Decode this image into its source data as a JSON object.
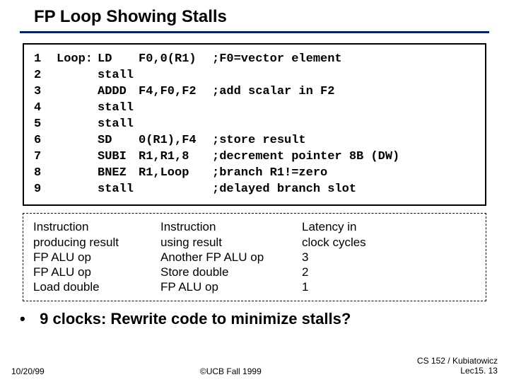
{
  "title": "FP Loop Showing Stalls",
  "code": [
    {
      "n": "1",
      "label": "Loop:",
      "op": "LD",
      "args": "F0,0(R1)",
      "comment": ";F0=vector element"
    },
    {
      "n": "2",
      "label": "",
      "op": "stall",
      "args": "",
      "comment": ""
    },
    {
      "n": "3",
      "label": "",
      "op": "ADDD",
      "args": "F4,F0,F2",
      "comment": ";add scalar in F2"
    },
    {
      "n": "4",
      "label": "",
      "op": "stall",
      "args": "",
      "comment": ""
    },
    {
      "n": "5",
      "label": "",
      "op": "stall",
      "args": "",
      "comment": ""
    },
    {
      "n": "6",
      "label": "",
      "op": "SD",
      "args": "0(R1),F4",
      "comment": ";store result"
    },
    {
      "n": "7",
      "label": "",
      "op": "SUBI",
      "args": "R1,R1,8",
      "comment": ";decrement pointer 8B (DW)"
    },
    {
      "n": "8",
      "label": "",
      "op": "BNEZ",
      "args": "R1,Loop",
      "comment": ";branch R1!=zero"
    },
    {
      "n": "9",
      "label": "",
      "op": "stall",
      "args": "",
      "comment": ";delayed branch slot"
    }
  ],
  "latency": {
    "headers": {
      "prod": "Instruction",
      "prod2": "producing result",
      "use": "Instruction",
      "use2": "using result",
      "lat": "Latency in",
      "lat2": "clock cycles"
    },
    "rows": [
      {
        "prod": "FP ALU op",
        "use": "Another FP ALU op",
        "lat": "3"
      },
      {
        "prod": "FP ALU op",
        "use": "Store double",
        "lat": "2"
      },
      {
        "prod": "Load double",
        "use": "FP ALU op",
        "lat": "1"
      }
    ]
  },
  "bullet": "9 clocks: Rewrite code to minimize stalls?",
  "footer": {
    "left": "10/20/99",
    "center": "©UCB Fall 1999",
    "right1": "CS 152 / Kubiatowicz",
    "right2": "Lec15. 13"
  }
}
